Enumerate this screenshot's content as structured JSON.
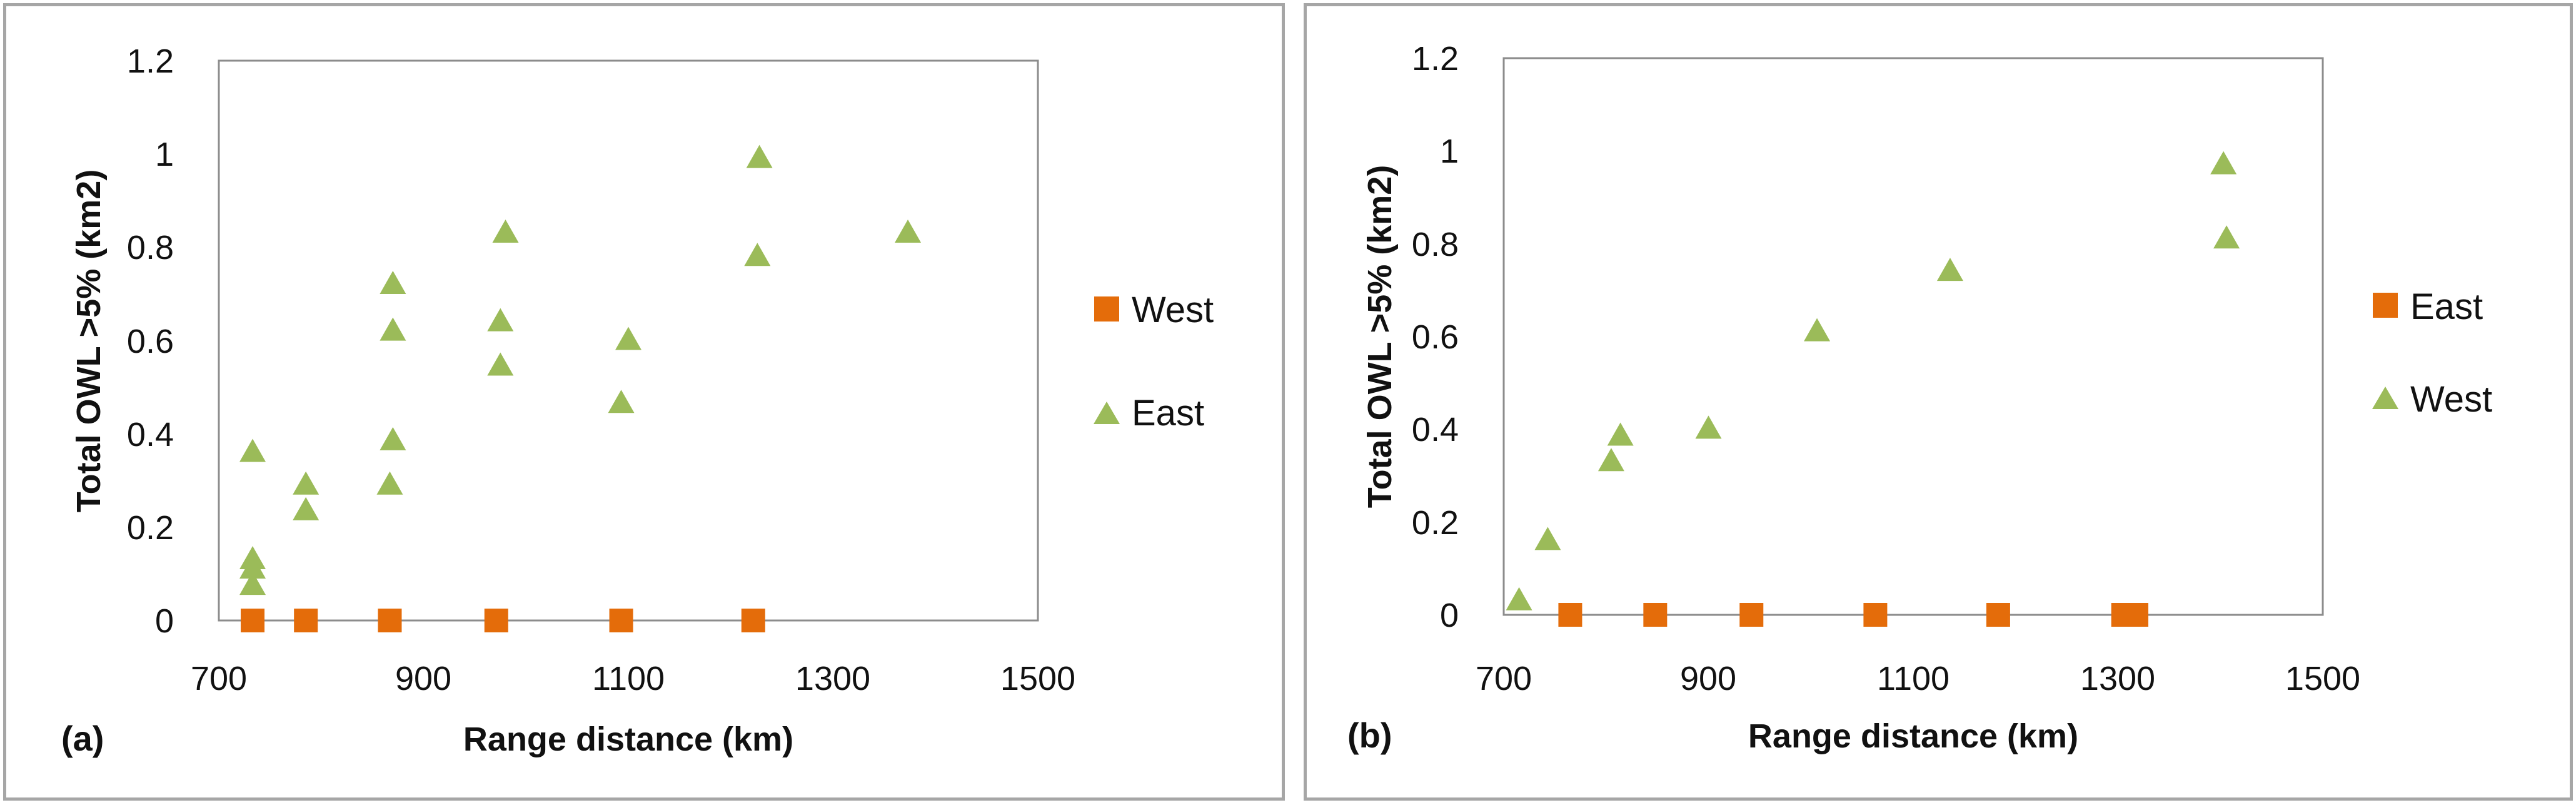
{
  "colors": {
    "square": "#E46C0A",
    "triangle": "#9BBB59",
    "frame": "#A6A6A6",
    "plot_border": "#8C8C8C"
  },
  "chart_data": [
    {
      "type": "scatter",
      "panel_label": "(a)",
      "xlabel": "Range distance (km)",
      "ylabel": "Total OWL >5% (km2)",
      "xlim": [
        700,
        1500
      ],
      "ylim": [
        0,
        1.2
      ],
      "xticks": [
        "700",
        "900",
        "1100",
        "1300",
        "1500"
      ],
      "yticks": [
        "0",
        "0.2",
        "0.4",
        "0.6",
        "0.8",
        "1",
        "1.2"
      ],
      "series": [
        {
          "name": "West",
          "marker": "square",
          "color": "#E46C0A",
          "x": [
            733,
            785,
            867,
            971,
            1093,
            1222
          ],
          "y": [
            0,
            0,
            0,
            0,
            0,
            0
          ]
        },
        {
          "name": "East",
          "marker": "triangle",
          "color": "#9BBB59",
          "x": [
            733,
            733,
            733,
            733,
            785,
            785,
            867,
            870,
            870,
            870,
            975,
            975,
            980,
            1093,
            1100,
            1226,
            1228,
            1373
          ],
          "y": [
            0.36,
            0.13,
            0.11,
            0.075,
            0.29,
            0.235,
            0.29,
            0.385,
            0.62,
            0.72,
            0.545,
            0.64,
            0.83,
            0.465,
            0.6,
            0.78,
            0.99,
            0.83
          ]
        }
      ]
    },
    {
      "type": "scatter",
      "panel_label": "(b)",
      "xlabel": "Range distance (km)",
      "ylabel": "Total OWL >5% (km2)",
      "xlim": [
        700,
        1500
      ],
      "ylim": [
        0,
        1.2
      ],
      "xticks": [
        "700",
        "900",
        "1100",
        "1300",
        "1500"
      ],
      "yticks": [
        "0",
        "0.2",
        "0.4",
        "0.6",
        "0.8",
        "1",
        "1.2"
      ],
      "series": [
        {
          "name": "East",
          "marker": "square",
          "color": "#E46C0A",
          "x": [
            765,
            848,
            942,
            1063,
            1183,
            1305,
            1318
          ],
          "y": [
            0,
            0,
            0,
            0,
            0,
            0,
            0
          ]
        },
        {
          "name": "West",
          "marker": "triangle",
          "color": "#9BBB59",
          "x": [
            715,
            743,
            805,
            814,
            900,
            1006,
            1136,
            1403,
            1406
          ],
          "y": [
            0.03,
            0.16,
            0.33,
            0.385,
            0.4,
            0.61,
            0.74,
            0.97,
            0.81
          ]
        }
      ]
    }
  ]
}
